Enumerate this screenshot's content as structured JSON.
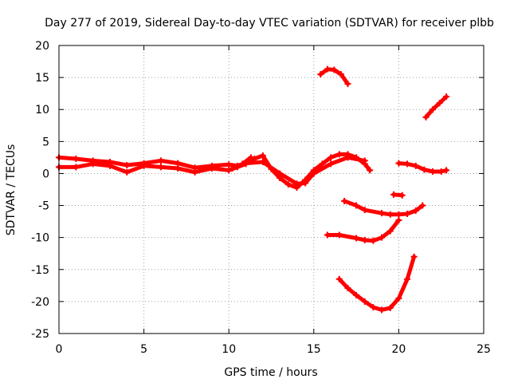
{
  "chart_data": {
    "type": "scatter",
    "title": "Day 277 of 2019, Sidereal Day-to-day VTEC variation (SDTVAR) for receiver plbb",
    "xlabel": "GPS time / hours",
    "ylabel": "SDTVAR / TECUs",
    "xlim": [
      0,
      25
    ],
    "ylim": [
      -25,
      20
    ],
    "xticks": [
      "0",
      "5",
      "10",
      "15",
      "20",
      "25"
    ],
    "yticks": [
      "20",
      "15",
      "10",
      "5",
      "0",
      "-5",
      "-10",
      "-15",
      "-20",
      "-25"
    ],
    "grid": true,
    "color": "#ff0000",
    "marker": "plus",
    "series": [
      {
        "x": [
          0.0,
          1.0,
          2.0,
          3.0,
          4.0,
          5.0,
          6.0,
          7.0,
          8.0,
          9.0,
          10.0,
          10.5,
          11.0,
          12.0,
          13.0,
          14.0,
          14.5,
          15.0,
          16.0,
          17.0,
          18.0
        ],
        "y": [
          2.5,
          2.3,
          2.0,
          1.8,
          1.3,
          1.6,
          2.0,
          1.6,
          0.9,
          1.2,
          1.4,
          1.2,
          1.6,
          1.8,
          0.0,
          -1.6,
          -1.5,
          0.0,
          1.5,
          2.5,
          2.0
        ]
      },
      {
        "x": [
          0.0,
          1.0,
          2.0,
          3.0,
          4.0,
          5.0,
          6.0,
          7.0,
          8.0,
          9.0,
          10.0,
          10.5,
          11.0,
          11.5,
          12.0,
          12.5,
          13.0,
          13.5,
          14.0,
          14.5,
          15.0,
          15.5,
          16.0,
          16.5,
          17.0,
          17.5,
          18.0,
          18.3
        ],
        "y": [
          1.0,
          1.0,
          1.5,
          1.2,
          0.2,
          1.2,
          1.0,
          0.8,
          0.2,
          0.8,
          0.5,
          1.0,
          1.5,
          2.3,
          2.8,
          0.7,
          -0.7,
          -1.7,
          -2.2,
          -1.0,
          0.5,
          1.5,
          2.5,
          3.0,
          3.0,
          2.5,
          1.5,
          0.5
        ]
      },
      {
        "x": [
          10.2,
          10.8,
          11.3
        ],
        "y": [
          0.8,
          1.5,
          2.5
        ]
      },
      {
        "x": [
          15.4,
          15.8,
          16.2,
          16.6,
          17.0
        ],
        "y": [
          15.5,
          16.3,
          16.2,
          15.5,
          14.0
        ]
      },
      {
        "x": [
          20.0,
          20.5,
          21.0,
          21.5,
          22.0,
          22.5,
          22.8
        ],
        "y": [
          1.6,
          1.5,
          1.2,
          0.6,
          0.3,
          0.3,
          0.5
        ]
      },
      {
        "x": [
          21.6,
          22.0,
          22.4,
          22.8
        ],
        "y": [
          8.8,
          10.0,
          11.0,
          12.0
        ]
      },
      {
        "x": [
          19.7,
          20.2
        ],
        "y": [
          -3.3,
          -3.4
        ]
      },
      {
        "x": [
          16.8,
          17.5,
          18.0,
          19.0,
          19.5,
          20.0,
          20.5,
          21.0,
          21.4
        ],
        "y": [
          -4.3,
          -5.0,
          -5.7,
          -6.2,
          -6.4,
          -6.4,
          -6.3,
          -5.8,
          -5.0
        ]
      },
      {
        "x": [
          15.8,
          16.5,
          17.5,
          18.0,
          18.5,
          19.0,
          19.5,
          20.0
        ],
        "y": [
          -9.6,
          -9.6,
          -10.1,
          -10.4,
          -10.5,
          -10.0,
          -9.0,
          -7.3
        ]
      },
      {
        "x": [
          16.5,
          17.0,
          17.5,
          18.0,
          18.5,
          19.0,
          19.5,
          20.0,
          20.5,
          20.9
        ],
        "y": [
          -16.5,
          -17.9,
          -19.0,
          -20.0,
          -20.9,
          -21.3,
          -21.0,
          -19.5,
          -16.5,
          -13.0
        ]
      }
    ]
  }
}
